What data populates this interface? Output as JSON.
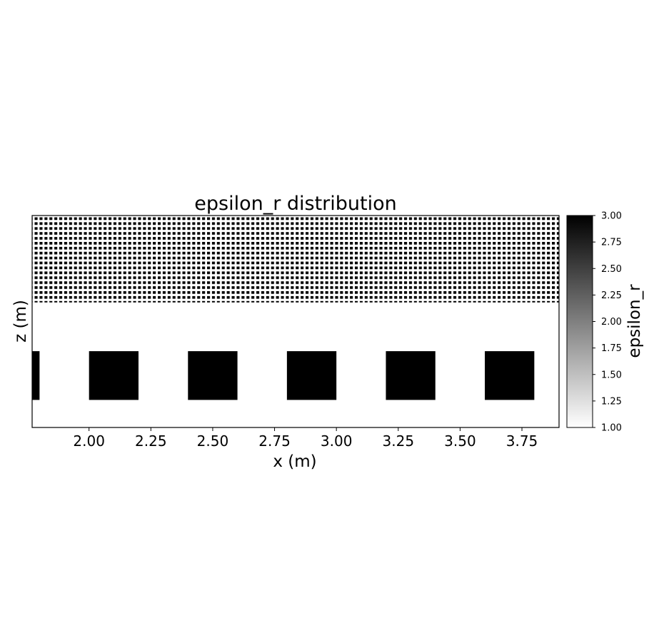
{
  "chart_data": {
    "type": "heatmap",
    "title": "epsilon_r distribution",
    "xlabel": "x (m)",
    "ylabel": "z (m)",
    "xlim": [
      1.77,
      3.9
    ],
    "zlim": [
      1.0,
      0.0
    ],
    "x_ticks": [
      2.0,
      2.25,
      2.5,
      2.75,
      3.0,
      3.25,
      3.5,
      3.75
    ],
    "x_tick_labels": [
      "2.00",
      "2.25",
      "2.50",
      "2.75",
      "3.00",
      "3.25",
      "3.50",
      "3.75"
    ],
    "y_ticks_shown": false,
    "background_value": 1.0,
    "upper_layer": {
      "z_range": [
        0.0,
        0.41
      ],
      "pattern": "dense periodic grid of small square inclusions",
      "inclusion_value": 3.0,
      "inclusion_period_x": 0.02,
      "inclusion_period_z": 0.028
    },
    "blocks": [
      {
        "x": [
          1.7,
          1.8
        ],
        "z": [
          0.64,
          0.87
        ],
        "value": 3.0
      },
      {
        "x": [
          2.0,
          2.2
        ],
        "z": [
          0.64,
          0.87
        ],
        "value": 3.0
      },
      {
        "x": [
          2.4,
          2.6
        ],
        "z": [
          0.64,
          0.87
        ],
        "value": 3.0
      },
      {
        "x": [
          2.8,
          3.0
        ],
        "z": [
          0.64,
          0.87
        ],
        "value": 3.0
      },
      {
        "x": [
          3.2,
          3.4
        ],
        "z": [
          0.64,
          0.87
        ],
        "value": 3.0
      },
      {
        "x": [
          3.6,
          3.8
        ],
        "z": [
          0.64,
          0.87
        ],
        "value": 3.0
      }
    ],
    "colorbar": {
      "label": "epsilon_r",
      "colormap": "gray_r",
      "range": [
        1.0,
        3.0
      ],
      "ticks": [
        1.0,
        1.25,
        1.5,
        1.75,
        2.0,
        2.25,
        2.5,
        2.75,
        3.0
      ],
      "tick_labels": [
        "1.00",
        "1.25",
        "1.50",
        "1.75",
        "2.00",
        "2.25",
        "2.50",
        "2.75",
        "3.00"
      ]
    }
  },
  "colors": {
    "high": "#000000",
    "low": "#ffffff",
    "axis": "#000000"
  }
}
